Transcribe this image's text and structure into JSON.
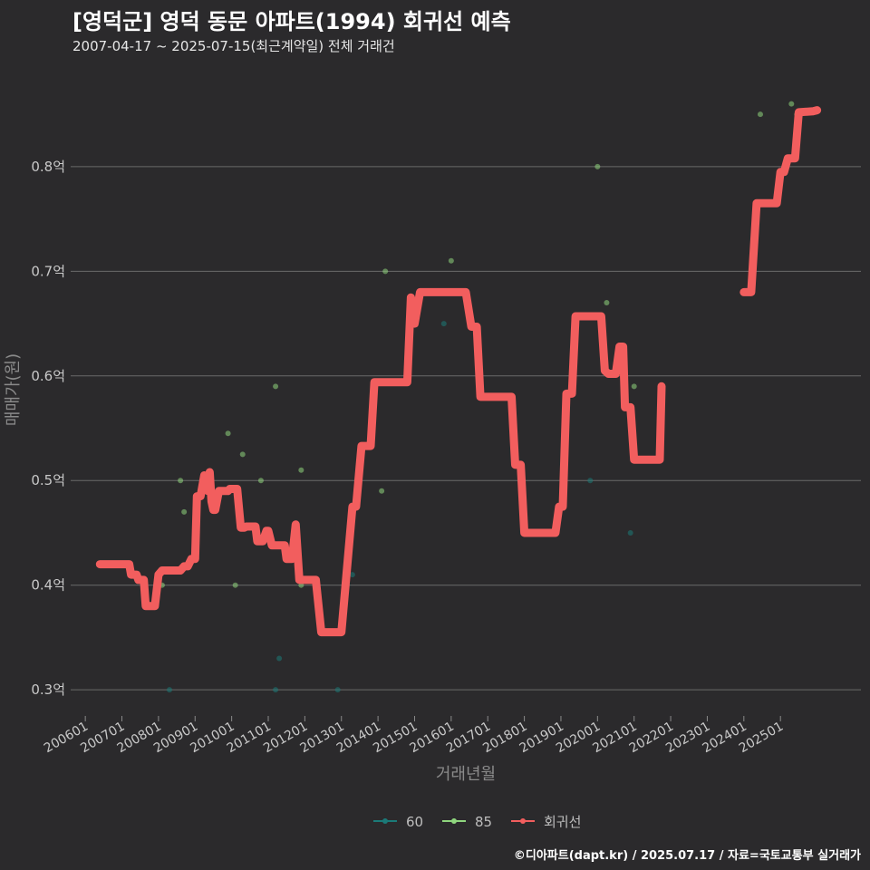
{
  "header": {
    "title": "[영덕군] 영덕 동문 아파트(1994) 회귀선 예측",
    "subtitle": "2007-04-17 ~ 2025-07-15(최근계약일) 전체 거래건"
  },
  "footer": {
    "credit": "©디아파트(dapt.kr) / 2025.07.17 / 자료=국토교통부 실거래가"
  },
  "chart_data": {
    "type": "line",
    "title": "[영덕군] 영덕 동문 아파트(1994) 회귀선 예측",
    "xlabel": "거래년월",
    "ylabel": "매매가(원)",
    "ylim": [
      0.275,
      0.89
    ],
    "xlim": [
      2005.6,
      2027.2
    ],
    "grid": true,
    "legend_position": "bottom",
    "y_ticks": [
      {
        "value": 0.3,
        "label": "0.3억"
      },
      {
        "value": 0.4,
        "label": "0.4억"
      },
      {
        "value": 0.5,
        "label": "0.5억"
      },
      {
        "value": 0.6,
        "label": "0.6억"
      },
      {
        "value": 0.7,
        "label": "0.7억"
      },
      {
        "value": 0.8,
        "label": "0.8억"
      }
    ],
    "x_ticks": [
      {
        "value": 2006,
        "label": "200601"
      },
      {
        "value": 2007,
        "label": "200701"
      },
      {
        "value": 2008,
        "label": "200801"
      },
      {
        "value": 2009,
        "label": "200901"
      },
      {
        "value": 2010,
        "label": "201001"
      },
      {
        "value": 2011,
        "label": "201101"
      },
      {
        "value": 2012,
        "label": "201201"
      },
      {
        "value": 2013,
        "label": "201301"
      },
      {
        "value": 2014,
        "label": "201401"
      },
      {
        "value": 2015,
        "label": "201501"
      },
      {
        "value": 2016,
        "label": "201601"
      },
      {
        "value": 2017,
        "label": "201701"
      },
      {
        "value": 2018,
        "label": "201801"
      },
      {
        "value": 2019,
        "label": "201901"
      },
      {
        "value": 2020,
        "label": "202001"
      },
      {
        "value": 2021,
        "label": "202101"
      },
      {
        "value": 2022,
        "label": "202201"
      },
      {
        "value": 2023,
        "label": "202301"
      },
      {
        "value": 2024,
        "label": "202401"
      },
      {
        "value": 2025,
        "label": "202501"
      }
    ],
    "legend": [
      {
        "name": "60",
        "color": "#1b7a78"
      },
      {
        "name": "85",
        "color": "#8fd67e"
      },
      {
        "name": "회귀선",
        "color": "#f25e5e"
      }
    ],
    "series": [
      {
        "name": "60",
        "color": "#1b7a78",
        "points": [
          [
            2008.3,
            0.3
          ],
          [
            2011.3,
            0.33
          ],
          [
            2011.2,
            0.3
          ],
          [
            2012.9,
            0.3
          ],
          [
            2013.3,
            0.41
          ],
          [
            2015.8,
            0.65
          ],
          [
            2019.8,
            0.5
          ],
          [
            2020.9,
            0.45
          ]
        ]
      },
      {
        "name": "85",
        "color": "#8fd67e",
        "points": [
          [
            2008.1,
            0.4
          ],
          [
            2008.6,
            0.5
          ],
          [
            2008.7,
            0.47
          ],
          [
            2009.9,
            0.545
          ],
          [
            2010.1,
            0.4
          ],
          [
            2010.3,
            0.525
          ],
          [
            2010.8,
            0.5
          ],
          [
            2011.2,
            0.59
          ],
          [
            2011.9,
            0.4
          ],
          [
            2011.9,
            0.51
          ],
          [
            2014.2,
            0.7
          ],
          [
            2014.1,
            0.49
          ],
          [
            2016.0,
            0.71
          ],
          [
            2020.0,
            0.8
          ],
          [
            2020.25,
            0.67
          ],
          [
            2021.0,
            0.59
          ],
          [
            2024.2,
            0.68
          ],
          [
            2024.45,
            0.85
          ],
          [
            2025.3,
            0.86
          ],
          [
            2025.45,
            0.85
          ]
        ]
      },
      {
        "name": "회귀선",
        "color": "#f25e5e",
        "segments": [
          [
            [
              2006.4,
              0.42
            ],
            [
              2007.2,
              0.42
            ],
            [
              2007.25,
              0.41
            ],
            [
              2007.4,
              0.41
            ],
            [
              2007.45,
              0.405
            ],
            [
              2007.6,
              0.405
            ],
            [
              2007.65,
              0.38
            ],
            [
              2007.9,
              0.38
            ],
            [
              2008.0,
              0.41
            ],
            [
              2008.1,
              0.414
            ],
            [
              2008.6,
              0.414
            ],
            [
              2008.7,
              0.418
            ],
            [
              2008.8,
              0.418
            ],
            [
              2008.9,
              0.425
            ],
            [
              2009.0,
              0.425
            ],
            [
              2009.05,
              0.485
            ],
            [
              2009.15,
              0.485
            ],
            [
              2009.25,
              0.505
            ],
            [
              2009.35,
              0.49
            ],
            [
              2009.4,
              0.508
            ],
            [
              2009.45,
              0.48
            ],
            [
              2009.5,
              0.472
            ],
            [
              2009.55,
              0.472
            ],
            [
              2009.65,
              0.49
            ],
            [
              2009.9,
              0.49
            ],
            [
              2009.95,
              0.492
            ],
            [
              2010.15,
              0.492
            ],
            [
              2010.25,
              0.455
            ],
            [
              2010.35,
              0.455
            ],
            [
              2010.4,
              0.456
            ],
            [
              2010.65,
              0.456
            ],
            [
              2010.7,
              0.442
            ],
            [
              2010.85,
              0.442
            ],
            [
              2010.95,
              0.452
            ],
            [
              2011.0,
              0.452
            ],
            [
              2011.1,
              0.438
            ],
            [
              2011.45,
              0.438
            ],
            [
              2011.5,
              0.425
            ],
            [
              2011.65,
              0.425
            ],
            [
              2011.75,
              0.458
            ],
            [
              2011.85,
              0.405
            ],
            [
              2012.3,
              0.405
            ],
            [
              2012.45,
              0.355
            ],
            [
              2013.0,
              0.355
            ],
            [
              2013.3,
              0.475
            ],
            [
              2013.4,
              0.475
            ],
            [
              2013.55,
              0.533
            ],
            [
              2013.8,
              0.533
            ],
            [
              2013.9,
              0.594
            ],
            [
              2014.8,
              0.594
            ],
            [
              2014.9,
              0.675
            ],
            [
              2015.0,
              0.65
            ],
            [
              2015.15,
              0.68
            ],
            [
              2016.4,
              0.68
            ],
            [
              2016.55,
              0.647
            ],
            [
              2016.7,
              0.647
            ],
            [
              2016.8,
              0.58
            ],
            [
              2017.65,
              0.58
            ],
            [
              2017.75,
              0.515
            ],
            [
              2017.9,
              0.515
            ],
            [
              2018.0,
              0.45
            ],
            [
              2018.85,
              0.45
            ],
            [
              2018.95,
              0.475
            ],
            [
              2019.05,
              0.475
            ],
            [
              2019.15,
              0.583
            ],
            [
              2019.3,
              0.583
            ],
            [
              2019.4,
              0.657
            ],
            [
              2020.1,
              0.657
            ],
            [
              2020.2,
              0.605
            ],
            [
              2020.3,
              0.602
            ],
            [
              2020.5,
              0.602
            ],
            [
              2020.6,
              0.628
            ],
            [
              2020.7,
              0.628
            ],
            [
              2020.75,
              0.57
            ],
            [
              2020.9,
              0.57
            ],
            [
              2021.0,
              0.52
            ],
            [
              2021.7,
              0.52
            ],
            [
              2021.75,
              0.59
            ]
          ],
          [
            [
              2024.0,
              0.68
            ],
            [
              2024.2,
              0.68
            ],
            [
              2024.35,
              0.765
            ],
            [
              2024.9,
              0.765
            ],
            [
              2025.0,
              0.795
            ],
            [
              2025.1,
              0.795
            ],
            [
              2025.2,
              0.808
            ],
            [
              2025.4,
              0.808
            ],
            [
              2025.5,
              0.852
            ],
            [
              2025.9,
              0.853
            ],
            [
              2026.0,
              0.854
            ]
          ]
        ]
      }
    ]
  }
}
